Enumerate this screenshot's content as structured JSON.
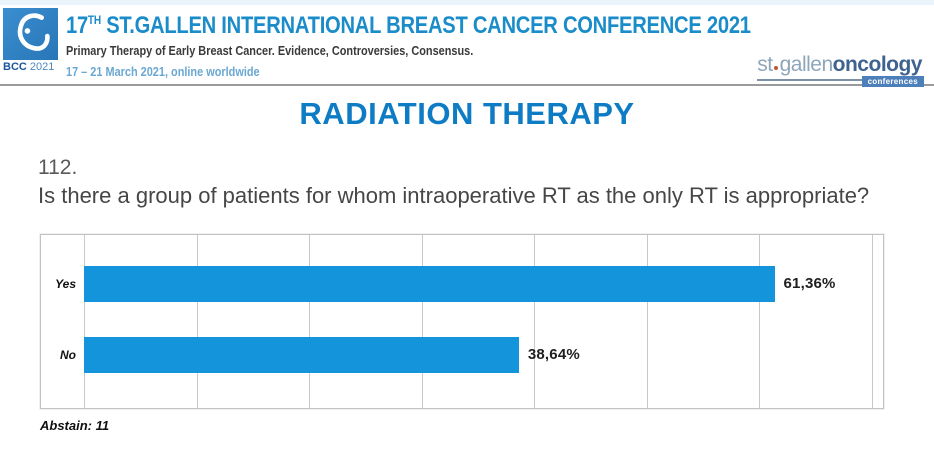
{
  "header": {
    "logo": {
      "abbr": "BCC",
      "year": "2021",
      "icon": "bcc-drop-logo"
    },
    "title": {
      "num": "17",
      "sup": "TH",
      "rest": " ST.GALLEN INTERNATIONAL BREAST CANCER CONFERENCE 2021"
    },
    "subtitle": "Primary Therapy of Early Breast Cancer. Evidence, Controversies, Consensus.",
    "dates": "17 – 21 March 2021, online worldwide",
    "brand": {
      "part1": "st",
      "part2": "gallen",
      "part3": "oncology",
      "badge": "conferences"
    }
  },
  "section_title": "RADIATION THERAPY",
  "question": {
    "number": "112.",
    "text": "Is there a group of patients for whom intraoperative RT as the only RT is appropriate?"
  },
  "chart_data": {
    "type": "bar",
    "orientation": "horizontal",
    "title": "",
    "categories": [
      "Yes",
      "No"
    ],
    "values": [
      61.36,
      38.64
    ],
    "value_labels": [
      "61,36%",
      "38,64%"
    ],
    "abstain_note": "Abstain: 11",
    "xlim": [
      0,
      71
    ],
    "gridline_step": 10,
    "grid": true,
    "legend": false,
    "bar_color": "#1495db"
  },
  "colors": {
    "accent_blue": "#1495db",
    "title_blue": "#0e7cc4",
    "header_blue": "#1a8cca",
    "date_blue": "#6aa8d3"
  }
}
